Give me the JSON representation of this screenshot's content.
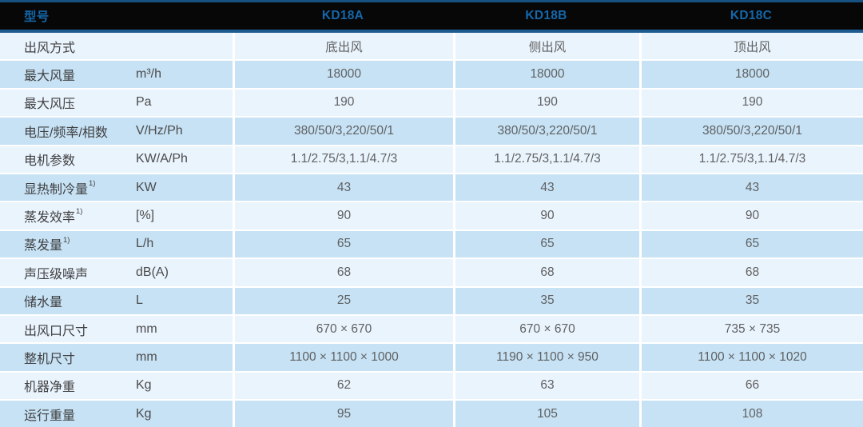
{
  "colors": {
    "header_bg": "#070707",
    "header_top_line": "#17517f",
    "header_bottom_line": "#1e5c90",
    "header_text": "#1467aa",
    "row_light": "#eaf4fc",
    "row_blue": "#c6e2f4",
    "label_color": "#404042",
    "unit_color": "#4b4b4d",
    "value_color": "#606163"
  },
  "table": {
    "header": {
      "model_label": "型号",
      "models": [
        "KD18A",
        "KD18B",
        "KD18C"
      ]
    },
    "rows": [
      {
        "label": "出风方式",
        "sup": "",
        "unit": "",
        "values": [
          "底出风",
          "侧出风",
          "顶出风"
        ]
      },
      {
        "label": "最大风量",
        "sup": "",
        "unit": "m³/h",
        "values": [
          "18000",
          "18000",
          "18000"
        ]
      },
      {
        "label": "最大风压",
        "sup": "",
        "unit": "Pa",
        "values": [
          "190",
          "190",
          "190"
        ]
      },
      {
        "label": "电压/频率/相数",
        "sup": "",
        "unit": "V/Hz/Ph",
        "values": [
          "380/50/3,220/50/1",
          "380/50/3,220/50/1",
          "380/50/3,220/50/1"
        ]
      },
      {
        "label": "电机参数",
        "sup": "",
        "unit": "KW/A/Ph",
        "values": [
          "1.1/2.75/3,1.1/4.7/3",
          "1.1/2.75/3,1.1/4.7/3",
          "1.1/2.75/3,1.1/4.7/3"
        ]
      },
      {
        "label": "显热制冷量",
        "sup": "1)",
        "unit": "KW",
        "values": [
          "43",
          "43",
          "43"
        ]
      },
      {
        "label": "蒸发效率",
        "sup": "1)",
        "unit": "[%]",
        "values": [
          "90",
          "90",
          "90"
        ]
      },
      {
        "label": "蒸发量",
        "sup": "1)",
        "unit": "L/h",
        "values": [
          "65",
          "65",
          "65"
        ]
      },
      {
        "label": "声压级噪声",
        "sup": "",
        "unit": "dB(A)",
        "values": [
          "68",
          "68",
          "68"
        ]
      },
      {
        "label": "储水量",
        "sup": "",
        "unit": "L",
        "values": [
          "25",
          "35",
          "35"
        ]
      },
      {
        "label": "出风口尺寸",
        "sup": "",
        "unit": "mm",
        "values": [
          "670 × 670",
          "670 × 670",
          "735 × 735"
        ]
      },
      {
        "label": "整机尺寸",
        "sup": "",
        "unit": "mm",
        "values": [
          "1100 × 1100 × 1000",
          "1190 × 1100 × 950",
          "1100 × 1100 × 1020"
        ]
      },
      {
        "label": "机器净重",
        "sup": "",
        "unit": "Kg",
        "values": [
          "62",
          "63",
          "66"
        ]
      },
      {
        "label": "运行重量",
        "sup": "",
        "unit": "Kg",
        "values": [
          "95",
          "105",
          "108"
        ]
      }
    ]
  }
}
